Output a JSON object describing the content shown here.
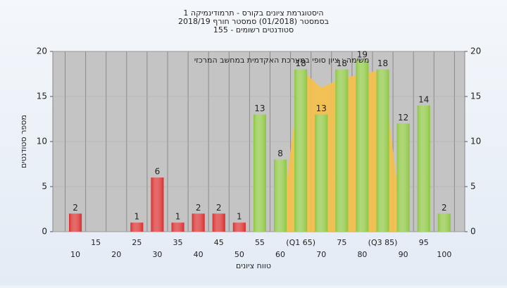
{
  "chart_data": {
    "type": "bar",
    "title": [
      "היסטוגרמת ציונים בקורס - תרמודינמיקה 1",
      "בסמסטר (01/2018) סמסטר חורף 2018/19",
      "סטודנטים רשומים - 155"
    ],
    "annotation": "משימה : ציון סופי במערכת האקדמית במחשב המרכזי",
    "x_label": "טווח ציונים",
    "y_label": "מספר סטודנטים",
    "categories": [
      "10",
      "15",
      "20",
      "25",
      "30",
      "35",
      "40",
      "45",
      "50",
      "55",
      "60",
      "(Q1 65)",
      "70",
      "75",
      "80",
      "(Q3 85)",
      "90",
      "95",
      "100"
    ],
    "values": [
      2,
      0,
      0,
      1,
      6,
      1,
      2,
      2,
      1,
      13,
      8,
      18,
      13,
      18,
      19,
      18,
      12,
      14,
      2
    ],
    "colors": [
      "#d92b2b",
      "#d92b2b",
      "#d92b2b",
      "#d92b2b",
      "#d92b2b",
      "#d92b2b",
      "#d92b2b",
      "#d92b2b",
      "#d92b2b",
      "#8cc63f",
      "#8cc63f",
      "#8cc63f",
      "#8cc63f",
      "#8cc63f",
      "#8cc63f",
      "#8cc63f",
      "#8cc63f",
      "#8cc63f",
      "#8cc63f"
    ],
    "area": {
      "color": "#f7c14a",
      "values": [
        null,
        null,
        null,
        null,
        null,
        null,
        null,
        null,
        null,
        null,
        null,
        18,
        16,
        17,
        17.5,
        18,
        null,
        null,
        null
      ]
    },
    "ylim": [
      0,
      20
    ],
    "yticks": [
      0,
      5,
      10,
      15,
      20
    ],
    "grid": true
  }
}
